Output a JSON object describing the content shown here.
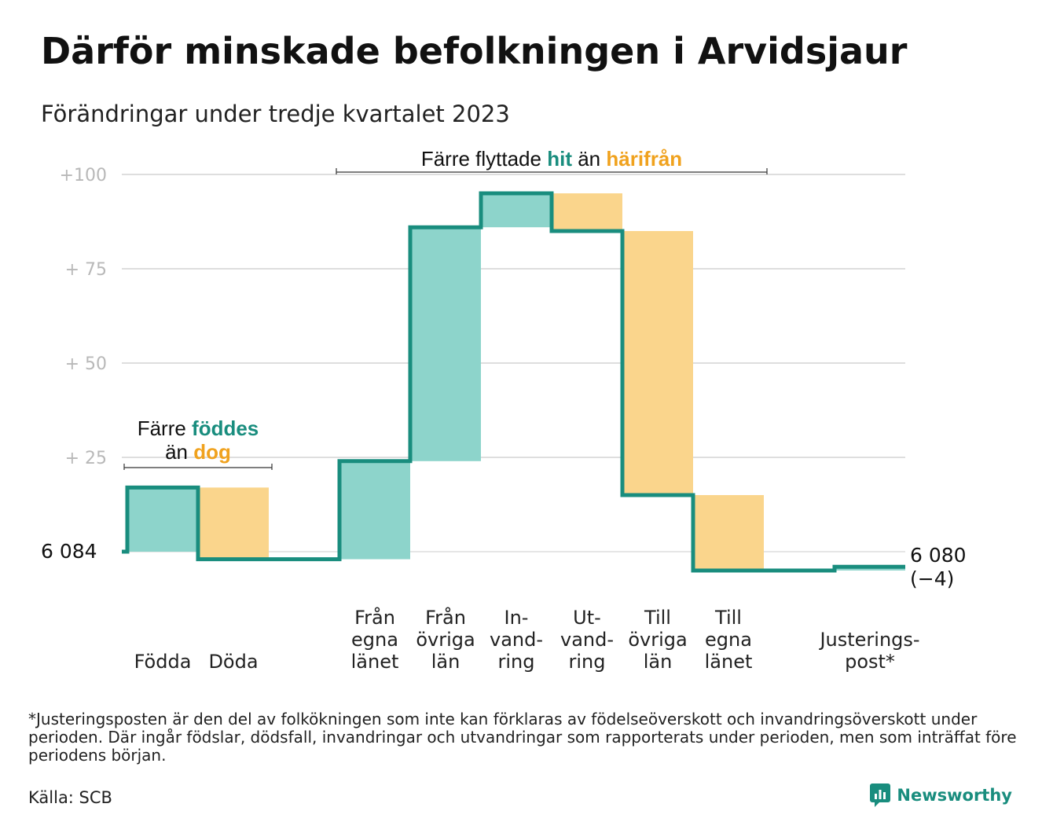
{
  "title": "Därför minskade befolkningen i Arvidsjaur",
  "subtitle": "Förändringar under tredje kvartalet 2023",
  "chart_data": {
    "type": "waterfall",
    "start_value": 6084,
    "start_label": "6  084",
    "end_value": 6080,
    "end_label_line1": "6 080",
    "end_label_line2": "(−4)",
    "ylim": [
      -6,
      104
    ],
    "y_ticks": [
      {
        "value": 100,
        "label": "+100"
      },
      {
        "value": 75,
        "label": "+  75"
      },
      {
        "value": 50,
        "label": "+  50"
      },
      {
        "value": 25,
        "label": "+  25"
      }
    ],
    "steps": [
      {
        "label": "Födda",
        "delta": 17,
        "kind": "in"
      },
      {
        "label": "Döda",
        "delta": -19,
        "kind": "out"
      },
      {
        "label": "",
        "delta": 0,
        "kind": "none"
      },
      {
        "label": "Från egna länet",
        "label_lines": [
          "Från",
          "egna",
          "länet"
        ],
        "delta": 26,
        "kind": "in"
      },
      {
        "label": "Från övriga län",
        "label_lines": [
          "Från",
          "övriga",
          "län"
        ],
        "delta": 62,
        "kind": "in"
      },
      {
        "label": "In-vandring",
        "label_lines": [
          "In-",
          "vand-",
          "ring"
        ],
        "delta": 9,
        "kind": "in"
      },
      {
        "label": "Ut-vandring",
        "label_lines": [
          "Ut-",
          "vand-",
          "ring"
        ],
        "delta": -10,
        "kind": "out"
      },
      {
        "label": "Till övriga län",
        "label_lines": [
          "Till",
          "övriga",
          "län"
        ],
        "delta": -70,
        "kind": "out"
      },
      {
        "label": "Till egna länet",
        "label_lines": [
          "Till",
          "egna",
          "länet"
        ],
        "delta": -20,
        "kind": "out"
      },
      {
        "label": "",
        "delta": 0,
        "kind": "none"
      },
      {
        "label": "Justeringspost*",
        "label_lines": [
          "Justerings-",
          "post*"
        ],
        "delta": 1,
        "kind": "in"
      }
    ],
    "annotations": [
      {
        "text_before": "Färre",
        "highlight_in": "föddes",
        "text_mid": "än",
        "highlight_out": "dog"
      },
      {
        "text_before": "Färre flyttade",
        "highlight_in": "hit",
        "text_mid": "än",
        "highlight_out": "härifrån"
      }
    ],
    "colors": {
      "in_fill": "#8dd4cb",
      "out_fill": "#fad58c",
      "line": "#198d7e",
      "highlight_in": "#198d7e",
      "highlight_out": "#f0a21e",
      "grid": "#dedede",
      "tick": "#b8b8b8"
    }
  },
  "footnote": "*Justeringsposten är den del av folkökningen som inte kan förklaras av födelseöverskott och invandringsöverskott under perioden. Där ingår födslar, dödsfall, invandringar och utvandringar som rapporterats under perioden, men som inträffat före periodens början.",
  "source": "Källa: SCB",
  "brand": "Newsworthy",
  "brand_icon": "newsworthy-logo-icon"
}
